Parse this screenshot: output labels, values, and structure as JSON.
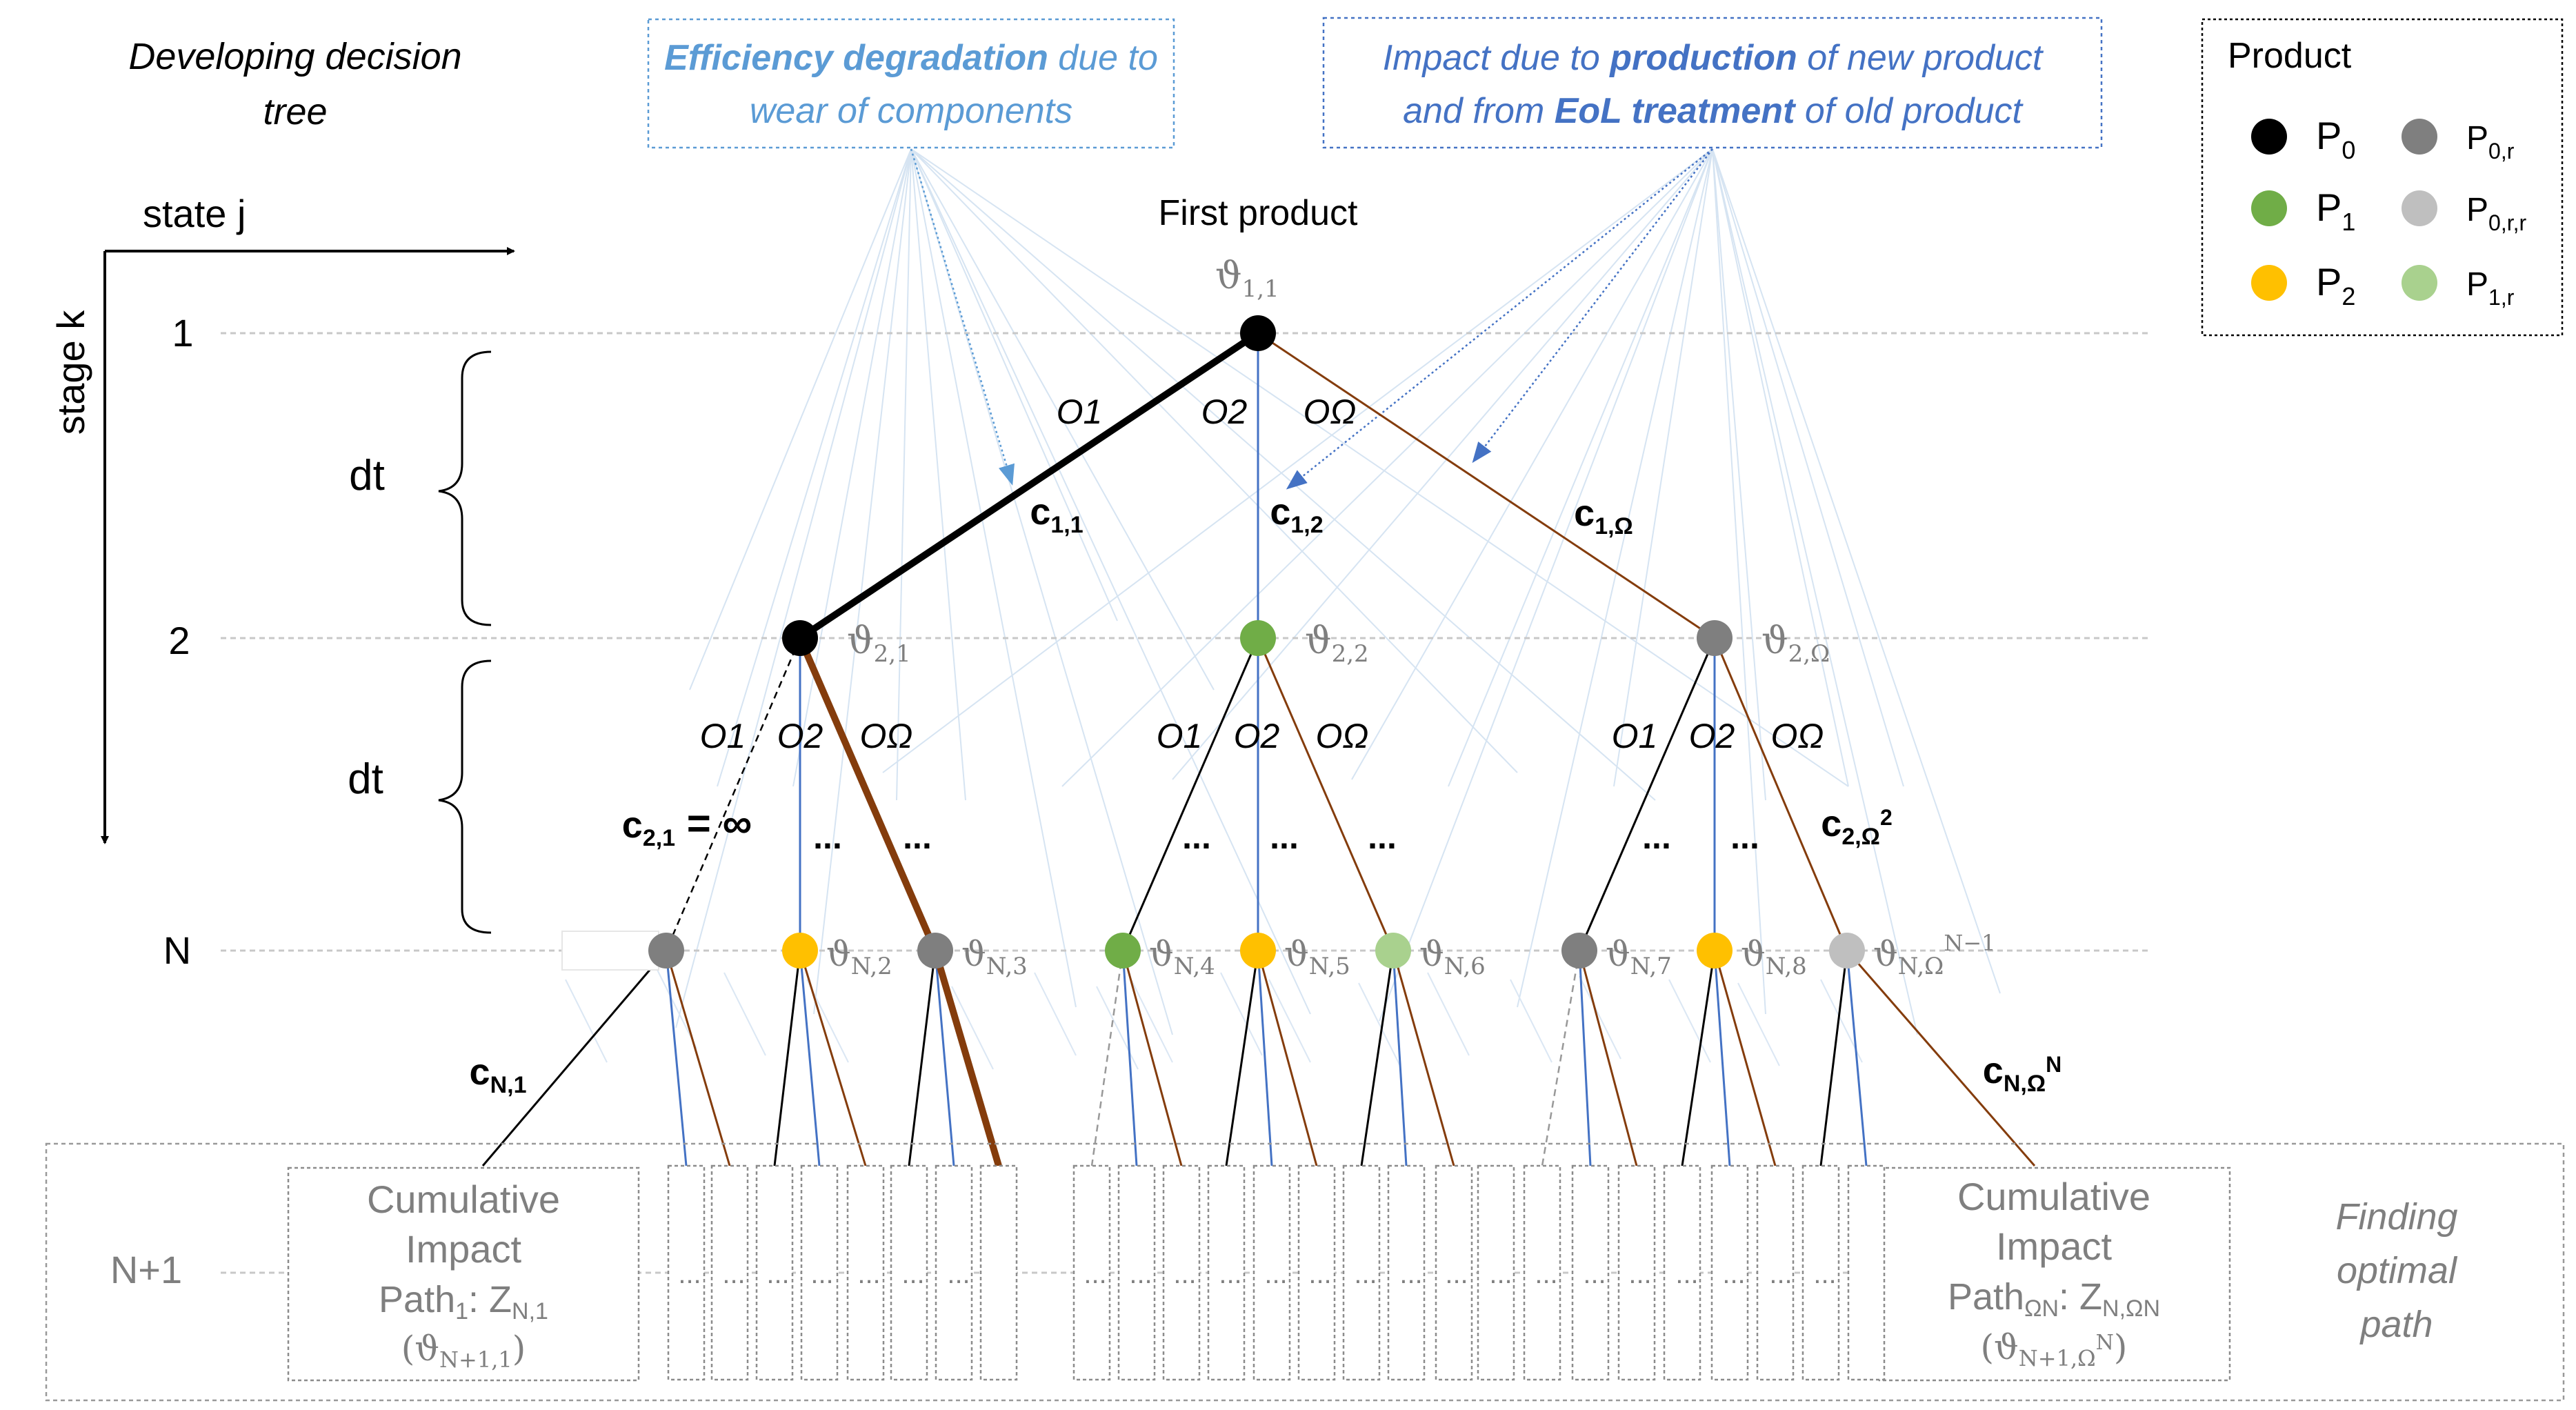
{
  "title": "Developing decision tree",
  "axes": {
    "state_label": "state j",
    "stage_label": "stage k",
    "stage_labels": [
      "1",
      "2",
      "N",
      "N+1"
    ],
    "interval_label": "dt"
  },
  "annotations": {
    "efficiency": {
      "bold_part": "Efficiency degradation",
      "rest_line1": " due to",
      "line2": "wear of components"
    },
    "impact": {
      "l1_a": "Impact due to ",
      "l1_bold": "production",
      "l1_b": " of new product",
      "l2_a": "and from ",
      "l2_bold": "EoL treatment",
      "l2_b": " of old product"
    },
    "first_product": "First product",
    "finding": [
      "Finding",
      "optimal",
      "path"
    ]
  },
  "legend": {
    "title": "Product",
    "items": [
      {
        "name": "P",
        "sub": "0",
        "color": "#000000"
      },
      {
        "name": "P",
        "sub": "0,r",
        "color": "#7f7f7f"
      },
      {
        "name": "P",
        "sub": "1",
        "color": "#70ad47"
      },
      {
        "name": "P",
        "sub": "0,r,r",
        "color": "#bfbfbf"
      },
      {
        "name": "P",
        "sub": "2",
        "color": "#ffc000"
      },
      {
        "name": "P",
        "sub": "1,r",
        "color": "#a9d18e"
      }
    ]
  },
  "options": [
    "O1",
    "O2",
    "OΩ"
  ],
  "nodes": {
    "root": {
      "label": "ϑ",
      "sub": "1,1",
      "color": "#000000"
    },
    "stage2": [
      {
        "label": "ϑ",
        "sub": "2,1",
        "color": "#000000"
      },
      {
        "label": "ϑ",
        "sub": "2,2",
        "color": "#70ad47"
      },
      {
        "label": "ϑ",
        "sub": "2,Ω",
        "color": "#7f7f7f"
      }
    ],
    "stageN": [
      {
        "label": "",
        "sub": "",
        "color": "#7f7f7f"
      },
      {
        "label": "ϑ",
        "sub": "N,2",
        "color": "#ffc000"
      },
      {
        "label": "ϑ",
        "sub": "N,3",
        "color": "#7f7f7f"
      },
      {
        "label": "ϑ",
        "sub": "N,4",
        "color": "#70ad47"
      },
      {
        "label": "ϑ",
        "sub": "N,5",
        "color": "#ffc000"
      },
      {
        "label": "ϑ",
        "sub": "N,6",
        "color": "#a9d18e"
      },
      {
        "label": "ϑ",
        "sub": "N,7",
        "color": "#7f7f7f"
      },
      {
        "label": "ϑ",
        "sub": "N,8",
        "color": "#ffc000"
      },
      {
        "label": "ϑ",
        "sub": "N,Ω",
        "sup": "N−1",
        "color": "#bfbfbf"
      }
    ]
  },
  "costs": {
    "c11": {
      "main": "c",
      "sub": "1,1"
    },
    "c12": {
      "main": "c",
      "sub": "1,2"
    },
    "c1o": {
      "main": "c",
      "sub": "1,Ω"
    },
    "c21": {
      "main": "c",
      "sub": "2,1",
      "rest": " = ∞"
    },
    "c2o": {
      "main": "c",
      "sub": "2,Ω",
      "sup": "2"
    },
    "cn1": {
      "main": "c",
      "sub": "N,1"
    },
    "cno": {
      "main": "c",
      "sub": "N,Ω",
      "sup": "N"
    }
  },
  "ellipsis": "...",
  "dots": "...",
  "cumulative_left": {
    "l1": "Cumulative",
    "l2": "Impact",
    "path": "Path",
    "path_sub": "1",
    "z": ": Z",
    "z_sub": "N,1",
    "theta": "(ϑ",
    "theta_sub": "N+1,1",
    "close": ")"
  },
  "cumulative_right": {
    "l1": "Cumulative",
    "l2": "Impact",
    "path": "Path",
    "path_sub": "ΩN",
    "z": ": Z",
    "z_sub": "N,ΩN",
    "theta": "(ϑ",
    "theta_sub": "N+1,Ω",
    "theta_sup": "N",
    "close": ")"
  },
  "colors": {
    "blue_text": "#5b9bd5",
    "dark_blue_text": "#4472c4",
    "brown": "#843c0c",
    "blue_line": "#4472c4",
    "grey": "#7f7f7f"
  }
}
